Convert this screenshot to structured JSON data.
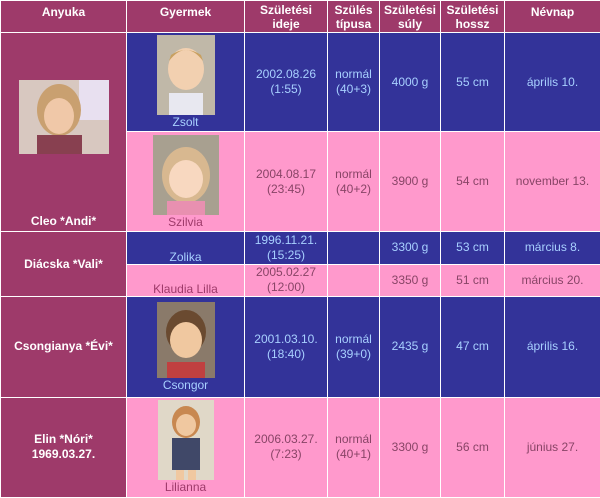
{
  "headers": {
    "mother": "Anyuka",
    "child": "Gyermek",
    "birth_date": "Születési ideje",
    "birth_type": "Szülés típusa",
    "birth_weight": "Születési súly",
    "birth_length": "Születési hossz",
    "nameday": "Névnap"
  },
  "rows": [
    {
      "child": "Zsolt",
      "date": "2002.08.26",
      "time": "(1:55)",
      "type": "normál",
      "type_detail": "(40+3)",
      "weight": "4000 g",
      "length": "55 cm",
      "nameday": "április 10."
    },
    {
      "child": "Szilvia",
      "date": "2004.08.17",
      "time": "(23:45)",
      "type": "normál",
      "type_detail": "(40+2)",
      "weight": "3900 g",
      "length": "54 cm",
      "nameday": "november 13."
    },
    {
      "child": "Zolika",
      "date": "1996.11.21.",
      "time": "(15:25)",
      "type": "",
      "type_detail": "",
      "weight": "3300 g",
      "length": "53 cm",
      "nameday": "március 8."
    },
    {
      "child": "Klaudia Lilla",
      "date": "2005.02.27",
      "time": "(12:00)",
      "type": "",
      "type_detail": "",
      "weight": "3350 g",
      "length": "51 cm",
      "nameday": "március 20."
    },
    {
      "child": "Csongor",
      "date": "2001.03.10.",
      "time": "(18:40)",
      "type": "normál",
      "type_detail": "(39+0)",
      "weight": "2435 g",
      "length": "47 cm",
      "nameday": "április 16."
    },
    {
      "child": "Lilianna",
      "date": "2006.03.27.",
      "time": "(7:23)",
      "type": "normál",
      "type_detail": "(40+1)",
      "weight": "3300 g",
      "length": "56 cm",
      "nameday": "június 27."
    }
  ],
  "mothers": [
    {
      "name": "Cleo *Andi*",
      "extra": ""
    },
    {
      "name": "Diácska *Vali*",
      "extra": ""
    },
    {
      "name": "Csongianya *Évi*",
      "extra": ""
    },
    {
      "name": "Elin *Nóri*",
      "extra": "1969.03.27."
    }
  ],
  "colors": {
    "header_bg": "#9e3a6a",
    "blue_row": "#333399",
    "pink_row": "#ff99cc"
  }
}
